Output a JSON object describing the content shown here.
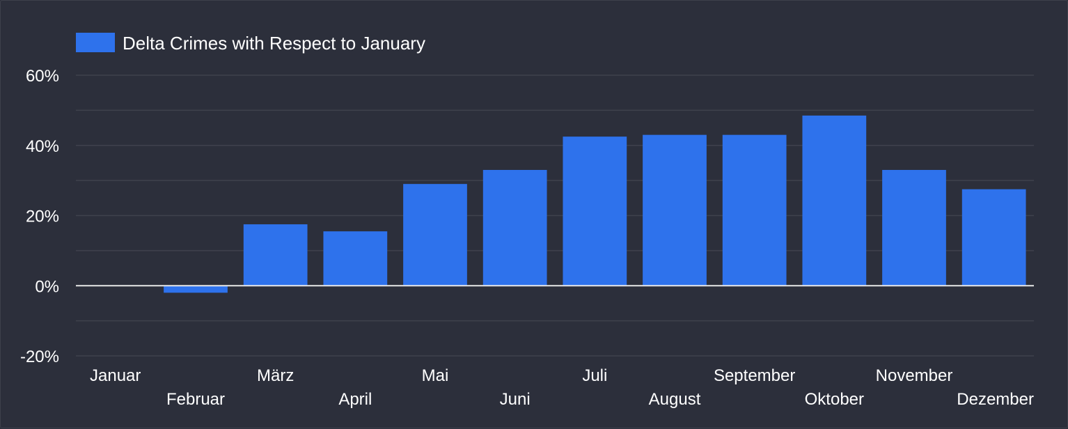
{
  "colors": {
    "background": "#2c2f3b",
    "bar": "#2e72ec",
    "grid": "#3f424d",
    "zero_line": "#e8e8e8",
    "text": "#ffffff"
  },
  "chart_data": {
    "type": "bar",
    "categories": [
      "Januar",
      "Februar",
      "März",
      "April",
      "Mai",
      "Juni",
      "Juli",
      "August",
      "September",
      "Oktober",
      "November",
      "Dezember"
    ],
    "series": [
      {
        "name": "Delta Crimes with Respect to January",
        "values": [
          0,
          -2,
          17.5,
          15.5,
          29,
          33,
          42.5,
          43,
          43,
          48.5,
          33,
          27.5
        ]
      }
    ],
    "y_ticks": [
      -20,
      0,
      20,
      40,
      60
    ],
    "y_tick_labels": [
      "-20%",
      "0%",
      "20%",
      "40%",
      "60%"
    ],
    "ylim": [
      -20,
      60
    ],
    "grid": true,
    "legend_position": "top-left",
    "xlabel": "",
    "ylabel": ""
  }
}
